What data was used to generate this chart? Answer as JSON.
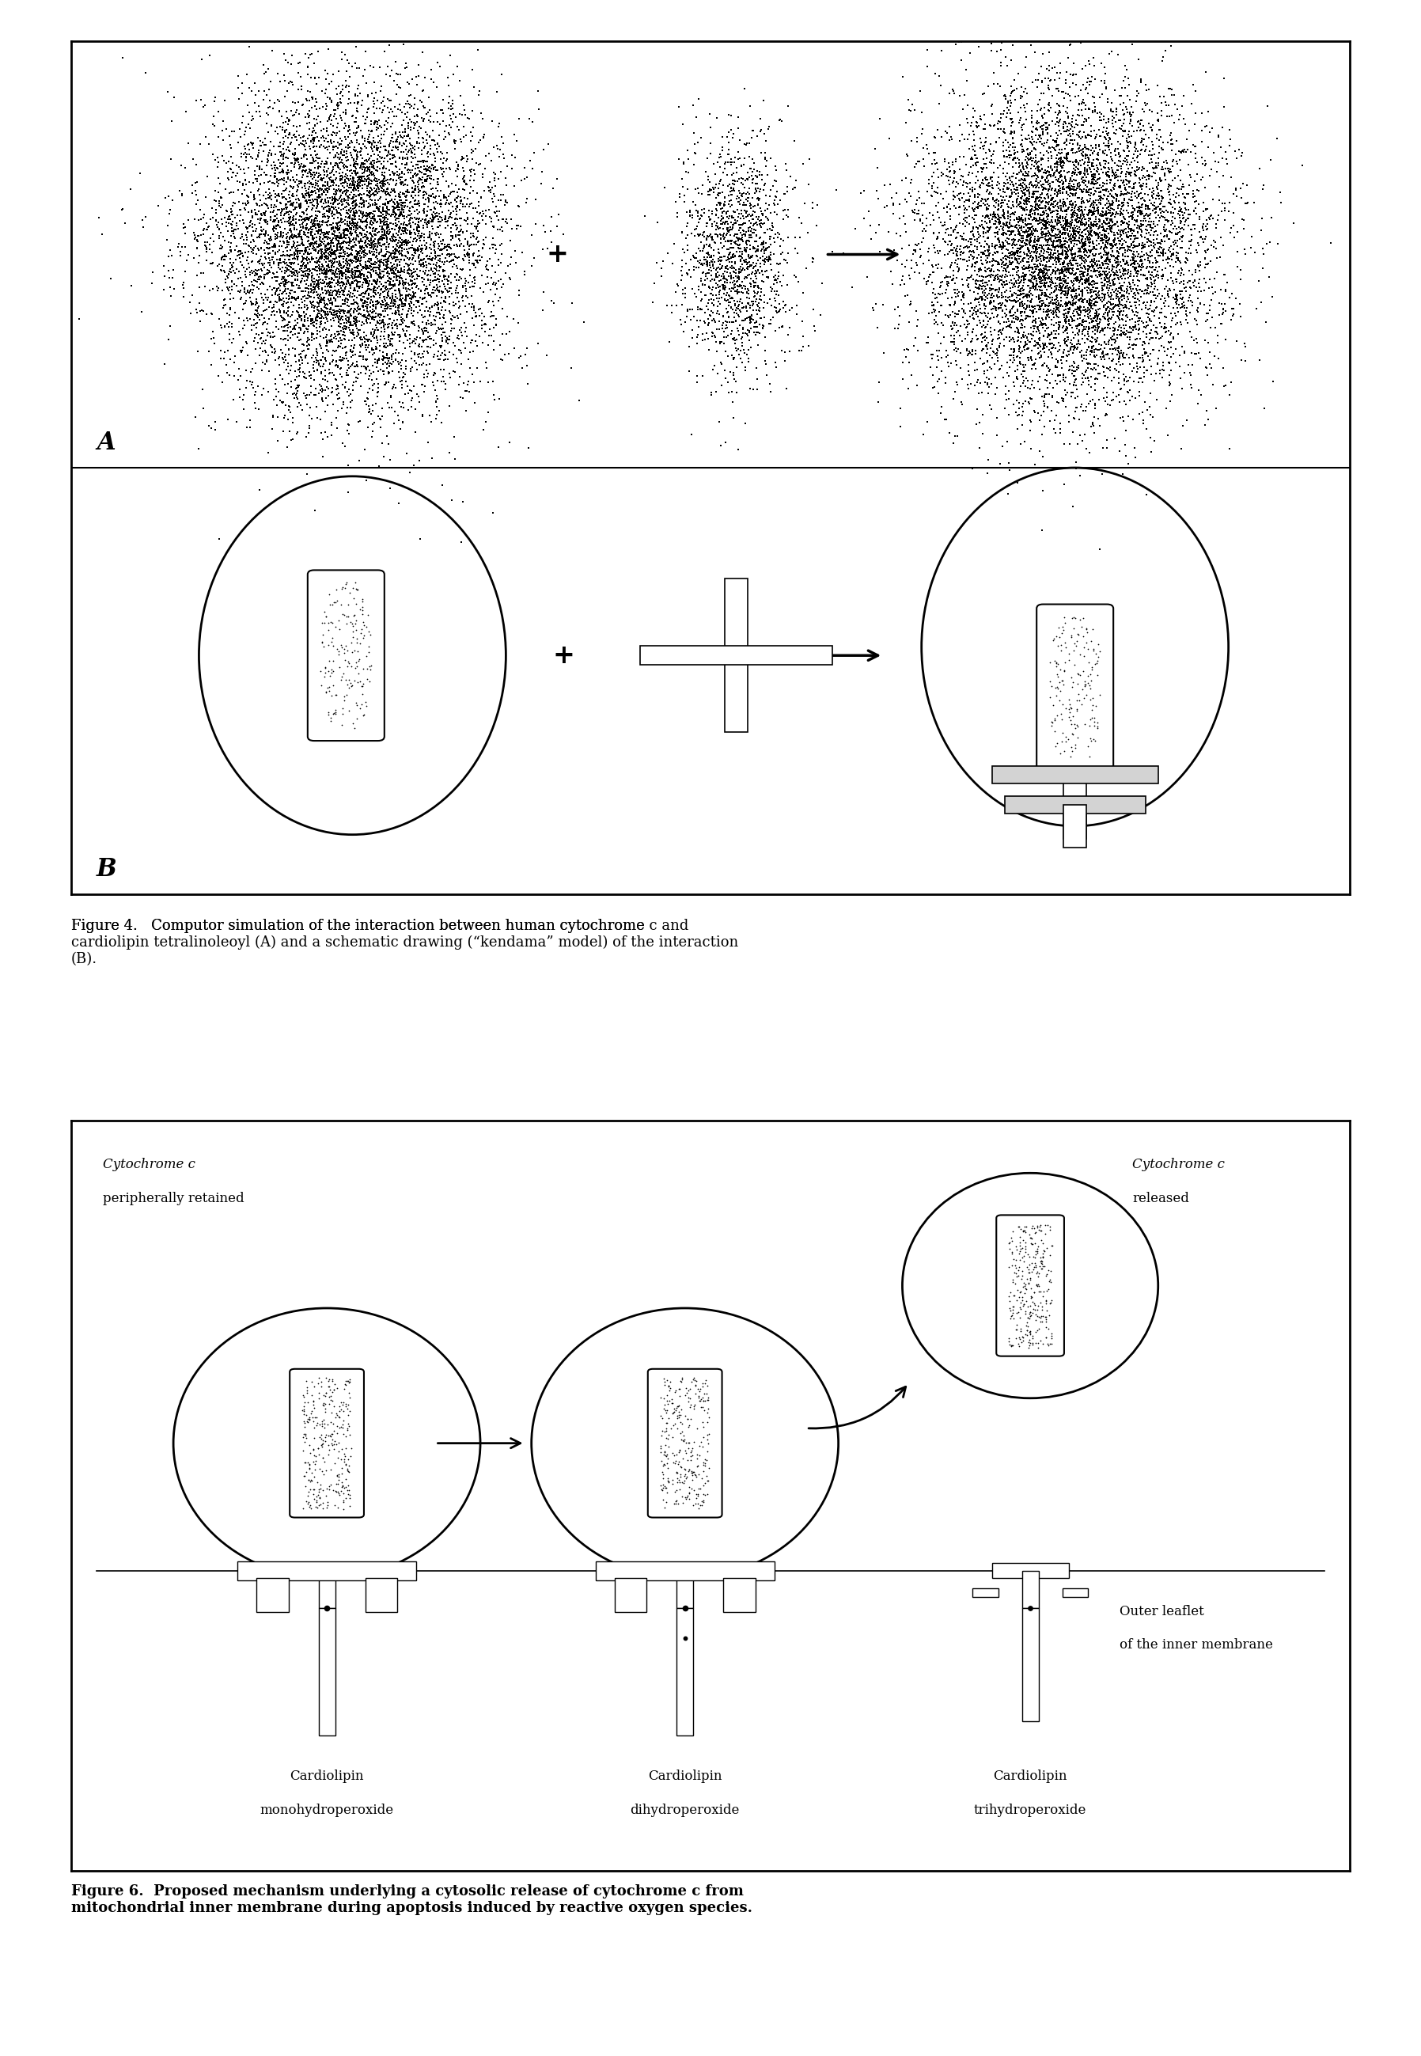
{
  "fig_width": 17.96,
  "fig_height": 25.98,
  "background": "#ffffff",
  "fig4_caption_line1": "Figure 4.   Computor simulation of the interaction between human cytochrome ",
  "fig4_caption_c": "c",
  "fig4_caption_line1b": " and",
  "fig4_caption_line2": "cardiolipin tetralinoleoyl (",
  "fig4_caption_A": "A",
  "fig4_caption_line2b": ") and a schematic drawing (“kendama” model) of the interaction",
  "fig4_caption_line3": "(",
  "fig4_caption_B": "B",
  "fig4_caption_line3b": ").",
  "fig6_caption_line1": "Figure 6.  Proposed mechanism underlying a cytosolic release of cytochrome c from",
  "fig6_caption_line2": "mitochondrial inner membrane during apoptosis induced by reactive oxygen species.",
  "panel_A_label": "A",
  "panel_B_label": "B",
  "label1_cytochrome": "Cytochrome c\nperipherally retained",
  "label2_cytochrome": "Cytochrome c\nreleased",
  "label_cardiolipin1": "Cardiolipin\nmonohydroperoxide",
  "label_cardiolipin2": "Cardiolipin\ndihydroperoxide",
  "label_cardiolipin3": "Cardiolipin\ntrihydroperoxide",
  "label_outer_leaflet": "Outer leaflet\nof the inner membrane"
}
